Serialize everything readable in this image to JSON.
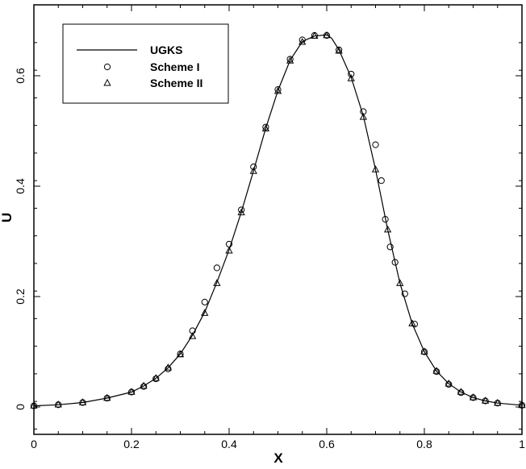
{
  "chart_data": {
    "type": "line",
    "title": "",
    "xlabel": "X",
    "ylabel": "U",
    "xlim": [
      0,
      1
    ],
    "ylim": [
      -0.05,
      0.72
    ],
    "xticks": [
      0,
      0.2,
      0.4,
      0.6,
      0.8,
      1
    ],
    "xtick_labels": [
      "0",
      "0.2",
      "0.4",
      "0.6",
      "0.8",
      "1"
    ],
    "yticks": [
      0,
      0.2,
      0.4,
      0.6
    ],
    "ytick_labels": [
      "0",
      "0.2",
      "0.4",
      "0.6"
    ],
    "grid": false,
    "legend_position": "top-left",
    "series": [
      {
        "name": "UGKS",
        "style": "solid line",
        "x": [
          0,
          0.05,
          0.1,
          0.15,
          0.2,
          0.225,
          0.25,
          0.275,
          0.3,
          0.325,
          0.35,
          0.375,
          0.4,
          0.425,
          0.45,
          0.475,
          0.5,
          0.525,
          0.55,
          0.575,
          0.6,
          0.61,
          0.625,
          0.65,
          0.675,
          0.7,
          0.725,
          0.75,
          0.775,
          0.8,
          0.825,
          0.85,
          0.875,
          0.9,
          0.925,
          0.95,
          1
        ],
        "y": [
          0.002,
          0.004,
          0.008,
          0.016,
          0.027,
          0.038,
          0.052,
          0.071,
          0.096,
          0.13,
          0.172,
          0.226,
          0.285,
          0.353,
          0.428,
          0.505,
          0.573,
          0.628,
          0.662,
          0.672,
          0.674,
          0.668,
          0.647,
          0.597,
          0.527,
          0.43,
          0.321,
          0.224,
          0.151,
          0.1,
          0.065,
          0.042,
          0.027,
          0.017,
          0.011,
          0.007,
          0.003
        ]
      },
      {
        "name": "Scheme I",
        "marker": "circle",
        "x": [
          0,
          0.05,
          0.1,
          0.15,
          0.2,
          0.225,
          0.25,
          0.275,
          0.3,
          0.325,
          0.35,
          0.375,
          0.4,
          0.425,
          0.45,
          0.475,
          0.5,
          0.525,
          0.55,
          0.575,
          0.6,
          0.625,
          0.65,
          0.675,
          0.7,
          0.712,
          0.72,
          0.73,
          0.74,
          0.76,
          0.78,
          0.8,
          0.825,
          0.85,
          0.875,
          0.9,
          0.925,
          0.95,
          1
        ],
        "y": [
          0.002,
          0.004,
          0.008,
          0.016,
          0.027,
          0.037,
          0.051,
          0.069,
          0.096,
          0.138,
          0.19,
          0.252,
          0.295,
          0.357,
          0.435,
          0.507,
          0.575,
          0.63,
          0.665,
          0.673,
          0.673,
          0.647,
          0.603,
          0.535,
          0.475,
          0.41,
          0.34,
          0.29,
          0.262,
          0.205,
          0.15,
          0.1,
          0.064,
          0.041,
          0.026,
          0.017,
          0.011,
          0.007,
          0.003
        ]
      },
      {
        "name": "Scheme II",
        "marker": "triangle",
        "x": [
          0,
          0.05,
          0.1,
          0.15,
          0.2,
          0.225,
          0.25,
          0.275,
          0.3,
          0.325,
          0.35,
          0.375,
          0.4,
          0.425,
          0.45,
          0.475,
          0.5,
          0.525,
          0.55,
          0.575,
          0.6,
          0.625,
          0.65,
          0.675,
          0.7,
          0.725,
          0.75,
          0.775,
          0.8,
          0.825,
          0.85,
          0.875,
          0.9,
          0.925,
          0.95,
          1
        ],
        "y": [
          0.002,
          0.004,
          0.008,
          0.016,
          0.027,
          0.038,
          0.052,
          0.071,
          0.095,
          0.128,
          0.17,
          0.224,
          0.283,
          0.352,
          0.427,
          0.504,
          0.572,
          0.627,
          0.661,
          0.672,
          0.673,
          0.645,
          0.595,
          0.525,
          0.43,
          0.321,
          0.224,
          0.151,
          0.1,
          0.065,
          0.042,
          0.027,
          0.017,
          0.011,
          0.007,
          0.003
        ]
      }
    ]
  }
}
